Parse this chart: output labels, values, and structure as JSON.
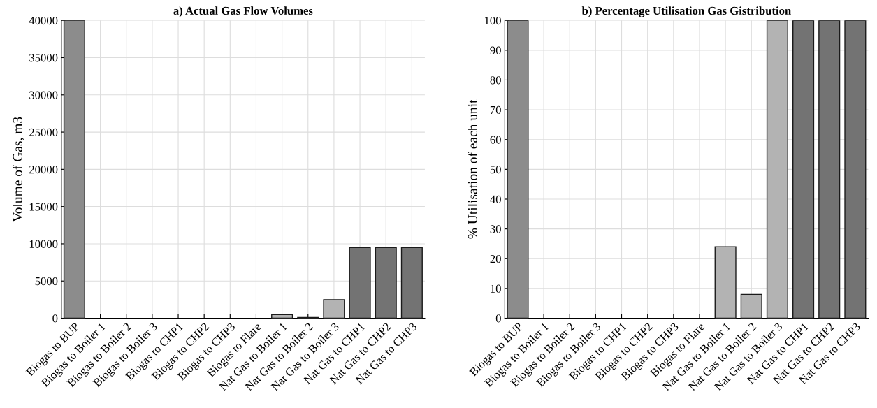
{
  "chart_data": [
    {
      "type": "bar",
      "title": "a) Actual Gas Flow Volumes",
      "ylabel": "Volume of Gas, m3",
      "categories": [
        "Biogas to BUP",
        "Biogas to Boiler 1",
        "Biogas to Boiler 2",
        "Biogas to Boiler 3",
        "Biogas to CHP1",
        "Biogas to CHP2",
        "Biogas to CHP3",
        "Biogas to Flare",
        "Nat Gas to Boiler 1",
        "Nat Gas to Boiler 2",
        "Nat Gas to Boiler 3",
        "Nat Gas to CHP1",
        "Nat Gas to CHP2",
        "Nat Gas to CHP3"
      ],
      "values": [
        40000,
        null,
        null,
        null,
        null,
        null,
        null,
        null,
        500,
        100,
        2500,
        9500,
        9500,
        9500
      ],
      "colors": [
        "#8c8c8c",
        "#8c8c8c",
        "#8c8c8c",
        "#8c8c8c",
        "#8c8c8c",
        "#8c8c8c",
        "#8c8c8c",
        "#8c8c8c",
        "#b3b3b3",
        "#b3b3b3",
        "#b3b3b3",
        "#737373",
        "#737373",
        "#737373"
      ],
      "ylim": [
        0,
        40000
      ],
      "yticks": [
        0,
        5000,
        10000,
        15000,
        20000,
        25000,
        30000,
        35000,
        40000
      ],
      "grid": true
    },
    {
      "type": "bar",
      "title": "b) Percentage Utilisation Gas Gistribution",
      "ylabel": "% Utilisation of each unit",
      "categories": [
        "Biogas to BUP",
        "Biogas to Boiler 1",
        "Biogas to Boiler 2",
        "Biogas to Boiler 3",
        "Biogas to CHP1",
        "Biogas to CHP2",
        "Biogas to CHP3",
        "Biogas to Flare",
        "Nat Gas to Boiler 1",
        "Nat Gas to Boiler 2",
        "Nat Gas to Boiler 3",
        "Nat Gas to CHP1",
        "Nat Gas to CHP2",
        "Nat Gas to CHP3"
      ],
      "values": [
        100,
        null,
        null,
        null,
        null,
        null,
        null,
        null,
        24,
        8,
        100,
        100,
        100,
        100
      ],
      "colors": [
        "#8c8c8c",
        "#8c8c8c",
        "#8c8c8c",
        "#8c8c8c",
        "#8c8c8c",
        "#8c8c8c",
        "#8c8c8c",
        "#8c8c8c",
        "#b3b3b3",
        "#b3b3b3",
        "#b3b3b3",
        "#737373",
        "#737373",
        "#737373"
      ],
      "ylim": [
        0,
        100
      ],
      "yticks": [
        0,
        10,
        20,
        30,
        40,
        50,
        60,
        70,
        80,
        90,
        100
      ],
      "grid": true
    }
  ]
}
